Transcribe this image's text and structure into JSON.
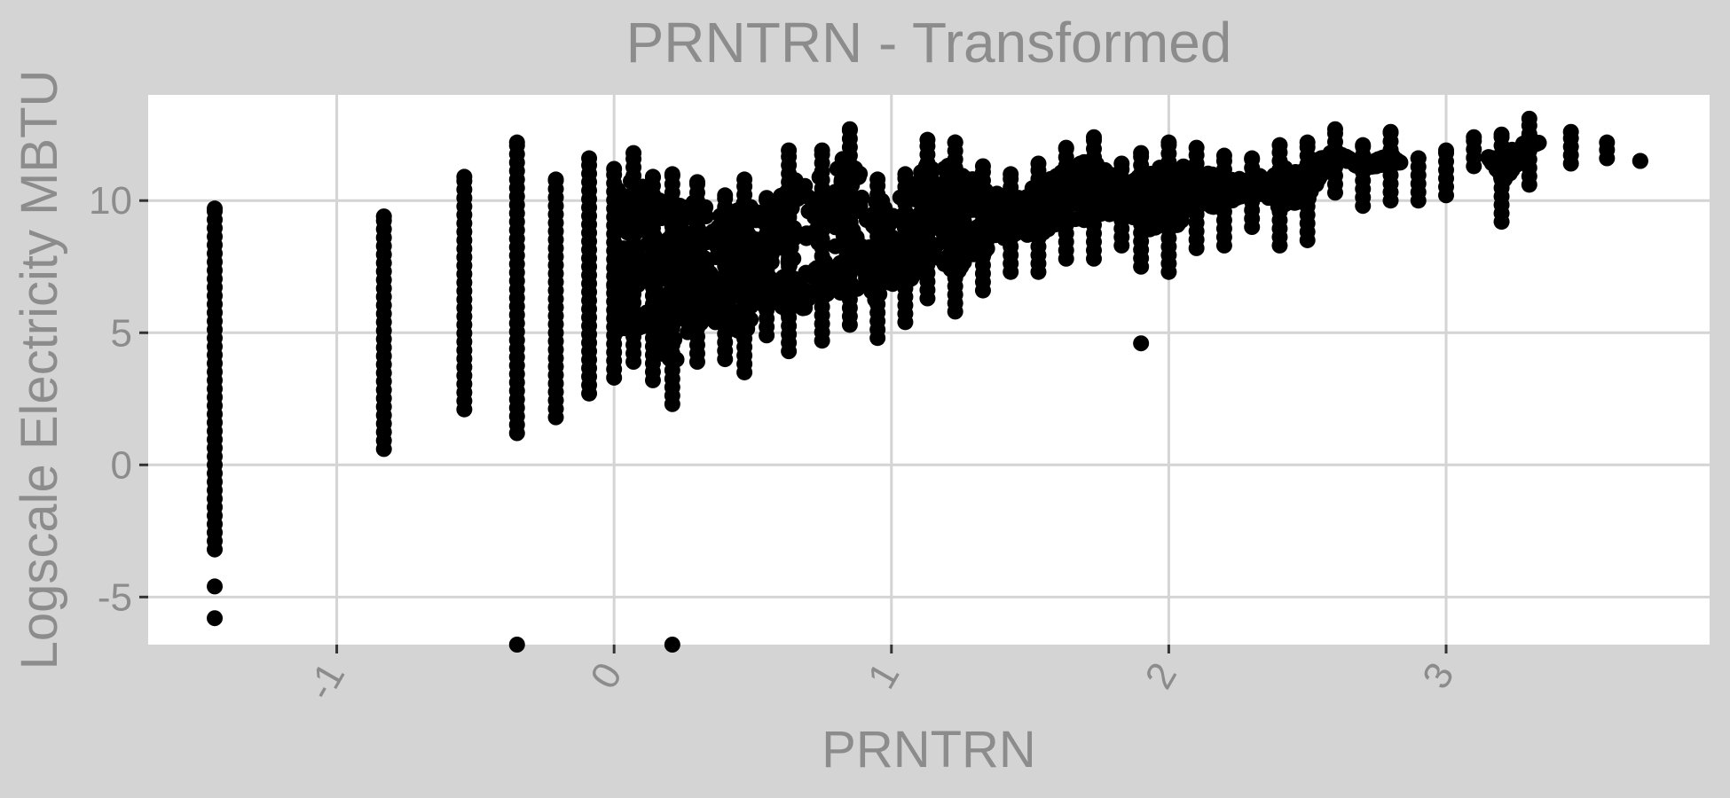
{
  "colors": {
    "outer_background": "#d4d4d4",
    "panel_background": "#ffffff",
    "grid": "#d4d4d4",
    "text": "#8c8c8c",
    "points": "#000000"
  },
  "chart_data": {
    "type": "scatter",
    "title": "PRNTRN - Transformed",
    "xlabel": "PRNTRN",
    "ylabel": "Logscale Electricity MBTU",
    "xlim": [
      -1.68,
      3.95
    ],
    "ylim": [
      -6.8,
      14.0
    ],
    "x_ticks": [
      -1,
      0,
      1,
      2,
      3
    ],
    "x_tick_labels": [
      "-1",
      "0",
      "1",
      "2",
      "3"
    ],
    "y_ticks": [
      -5,
      0,
      5,
      10
    ],
    "y_tick_labels": [
      "-5",
      "0",
      "5",
      "10"
    ],
    "grid": true,
    "legend": "none",
    "columns": [
      {
        "x": -1.44,
        "ymin": -3.2,
        "ymax": 9.7,
        "outliers": [
          -4.6,
          -5.8
        ]
      },
      {
        "x": -0.83,
        "ymin": 0.6,
        "ymax": 9.4
      },
      {
        "x": -0.54,
        "ymin": 2.1,
        "ymax": 10.9
      },
      {
        "x": -0.35,
        "ymin": 1.2,
        "ymax": 12.2,
        "outliers": [
          -6.8
        ]
      },
      {
        "x": -0.21,
        "ymin": 1.8,
        "ymax": 10.8
      },
      {
        "x": -0.09,
        "ymin": 2.7,
        "ymax": 11.6
      },
      {
        "x": 0.0,
        "ymin": 3.3,
        "ymax": 11.2
      },
      {
        "x": 0.07,
        "ymin": 3.9,
        "ymax": 11.8
      },
      {
        "x": 0.14,
        "ymin": 3.2,
        "ymax": 10.9
      },
      {
        "x": 0.21,
        "ymin": 2.3,
        "ymax": 11.0,
        "outliers": [
          -6.8
        ]
      },
      {
        "x": 0.3,
        "ymin": 3.9,
        "ymax": 10.7
      },
      {
        "x": 0.4,
        "ymin": 4.0,
        "ymax": 10.2
      },
      {
        "x": 0.47,
        "ymin": 3.5,
        "ymax": 10.8
      },
      {
        "x": 0.55,
        "ymin": 4.9,
        "ymax": 10.1
      },
      {
        "x": 0.63,
        "ymin": 4.3,
        "ymax": 11.9
      },
      {
        "x": 0.75,
        "ymin": 4.7,
        "ymax": 11.9
      },
      {
        "x": 0.85,
        "ymin": 5.3,
        "ymax": 12.7
      },
      {
        "x": 0.95,
        "ymin": 4.8,
        "ymax": 10.8
      },
      {
        "x": 1.05,
        "ymin": 5.4,
        "ymax": 11.0
      },
      {
        "x": 1.13,
        "ymin": 6.3,
        "ymax": 12.3
      },
      {
        "x": 1.23,
        "ymin": 5.8,
        "ymax": 12.2
      },
      {
        "x": 1.33,
        "ymin": 6.6,
        "ymax": 11.3
      },
      {
        "x": 1.43,
        "ymin": 7.3,
        "ymax": 11.0
      },
      {
        "x": 1.53,
        "ymin": 7.3,
        "ymax": 11.4
      },
      {
        "x": 1.63,
        "ymin": 7.8,
        "ymax": 12.0
      },
      {
        "x": 1.73,
        "ymin": 7.8,
        "ymax": 12.4
      },
      {
        "x": 1.83,
        "ymin": 8.3,
        "ymax": 11.4
      },
      {
        "x": 1.9,
        "ymin": 7.5,
        "ymax": 11.8,
        "outliers": [
          4.6
        ]
      },
      {
        "x": 2.0,
        "ymin": 7.3,
        "ymax": 12.2
      },
      {
        "x": 2.1,
        "ymin": 8.2,
        "ymax": 12.0
      },
      {
        "x": 2.2,
        "ymin": 8.3,
        "ymax": 11.7
      },
      {
        "x": 2.3,
        "ymin": 9.0,
        "ymax": 11.6
      },
      {
        "x": 2.4,
        "ymin": 8.3,
        "ymax": 12.1
      },
      {
        "x": 2.5,
        "ymin": 8.5,
        "ymax": 12.2
      },
      {
        "x": 2.6,
        "ymin": 10.3,
        "ymax": 12.7
      },
      {
        "x": 2.7,
        "ymin": 9.8,
        "ymax": 12.1
      },
      {
        "x": 2.8,
        "ymin": 10.0,
        "ymax": 12.6
      },
      {
        "x": 2.9,
        "ymin": 10.0,
        "ymax": 11.6
      },
      {
        "x": 3.0,
        "ymin": 10.2,
        "ymax": 11.9
      },
      {
        "x": 3.1,
        "ymin": 11.3,
        "ymax": 12.4
      },
      {
        "x": 3.2,
        "ymin": 9.2,
        "ymax": 12.5
      },
      {
        "x": 3.3,
        "ymin": 10.6,
        "ymax": 13.1
      },
      {
        "x": 3.45,
        "ymin": 11.4,
        "ymax": 12.6
      },
      {
        "x": 3.58,
        "ymin": 11.6,
        "ymax": 12.2
      },
      {
        "x": 3.7,
        "ymin": 11.5,
        "ymax": 11.5
      }
    ]
  }
}
